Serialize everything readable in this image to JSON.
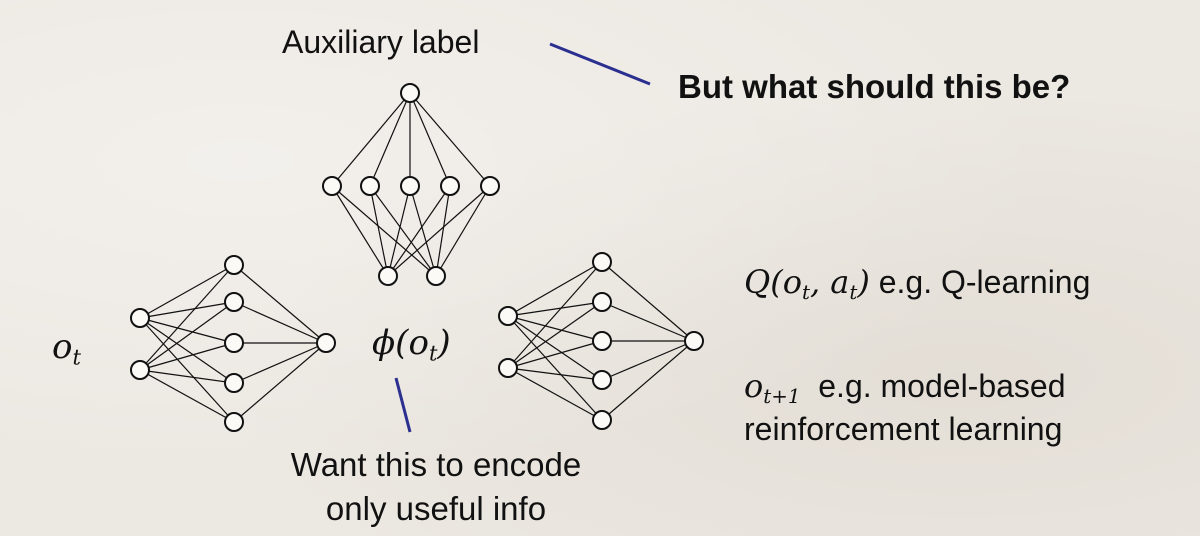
{
  "labels": {
    "auxiliary": "Auxiliary label",
    "question": "But what should this be?",
    "input_symbol": "o",
    "input_subscript": "t",
    "encoder_phi": "ϕ(",
    "encoder_o": "o",
    "encoder_sub": "t",
    "encoder_close": ")",
    "q_prefix": "Q(",
    "q_o": "o",
    "q_o_sub": "t",
    "q_comma": ", ",
    "q_a": "a",
    "q_a_sub": "t",
    "q_close": ")",
    "q_desc": "e.g. Q-learning",
    "next_o": "o",
    "next_sub": "t+1",
    "next_desc_line1": "e.g. model-based",
    "next_desc_line2": "reinforcement learning",
    "encode_line1": "Want this to encode",
    "encode_line2": "only useful info"
  },
  "colors": {
    "pointer_line": "#2b2f8f",
    "network_stroke": "#111111",
    "background": "#ece8e2"
  }
}
